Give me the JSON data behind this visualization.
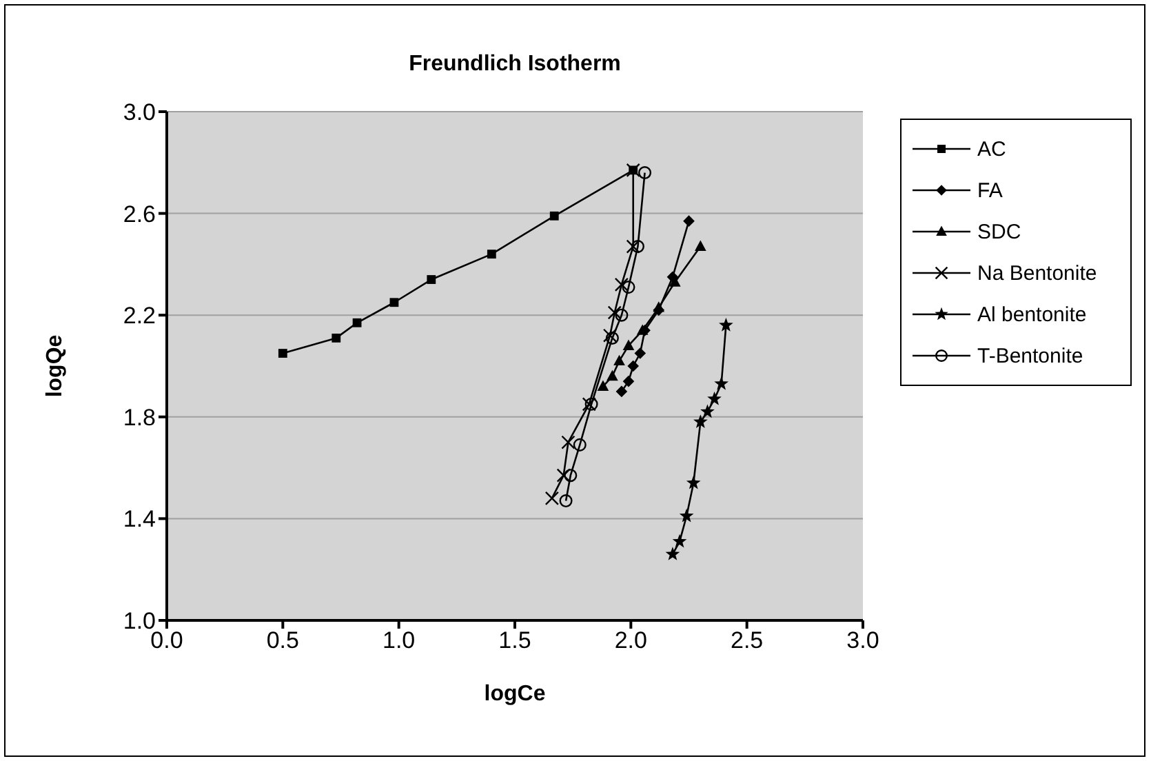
{
  "chart_data": {
    "type": "line",
    "title": "Freundlich Isotherm",
    "xlabel": "logCe",
    "ylabel": "logQe",
    "xlim": [
      0,
      3
    ],
    "xticks": [
      {
        "value": 0,
        "label": "0.0"
      },
      0.5,
      {
        "value": 1,
        "label": "1.0"
      },
      1.5,
      {
        "value": 2,
        "label": "2.0"
      },
      2.5,
      {
        "value": 3,
        "label": "3.0"
      }
    ],
    "ylim": [
      1,
      3
    ],
    "yticks": [
      {
        "value": 1,
        "label": "1.0"
      },
      1.4,
      1.8,
      2.2,
      2.6,
      {
        "value": 3,
        "label": "3.0"
      }
    ],
    "grid": "y",
    "legend": "right",
    "series": [
      {
        "name": "AC",
        "color": "#000000",
        "marker": "square",
        "x": [
          0.5,
          0.73,
          0.82,
          0.98,
          1.14,
          1.4,
          1.67,
          2.01
        ],
        "values": [
          2.05,
          2.11,
          2.17,
          2.25,
          2.34,
          2.44,
          2.59,
          2.77
        ]
      },
      {
        "name": "FA",
        "color": "#000000",
        "marker": "diamond",
        "x": [
          1.96,
          1.99,
          2.01,
          2.04,
          2.06,
          2.12,
          2.18,
          2.25
        ],
        "values": [
          1.9,
          1.94,
          2.0,
          2.05,
          2.14,
          2.22,
          2.35,
          2.57
        ]
      },
      {
        "name": "SDC",
        "color": "#000000",
        "marker": "triangle",
        "x": [
          1.88,
          1.92,
          1.95,
          1.99,
          2.05,
          2.12,
          2.19,
          2.3
        ],
        "values": [
          1.92,
          1.96,
          2.02,
          2.08,
          2.14,
          2.23,
          2.33,
          2.47
        ]
      },
      {
        "name": "Na Bentonite",
        "color": "#000000",
        "marker": "cross",
        "x": [
          1.66,
          1.71,
          1.73,
          1.82,
          1.91,
          1.93,
          1.96,
          2.01,
          2.01
        ],
        "values": [
          1.48,
          1.57,
          1.7,
          1.85,
          2.12,
          2.21,
          2.32,
          2.47,
          2.77
        ]
      },
      {
        "name": "Al bentonite",
        "color": "#000000",
        "marker": "star",
        "x": [
          2.18,
          2.21,
          2.24,
          2.27,
          2.3,
          2.33,
          2.36,
          2.39,
          2.41
        ],
        "values": [
          1.26,
          1.31,
          1.41,
          1.54,
          1.78,
          1.82,
          1.87,
          1.93,
          2.16
        ]
      },
      {
        "name": "T-Bentonite",
        "color": "#000000",
        "marker": "circle",
        "x": [
          1.72,
          1.74,
          1.78,
          1.83,
          1.92,
          1.96,
          1.99,
          2.03,
          2.06
        ],
        "values": [
          1.47,
          1.57,
          1.69,
          1.85,
          2.11,
          2.2,
          2.31,
          2.47,
          2.76
        ]
      }
    ]
  }
}
